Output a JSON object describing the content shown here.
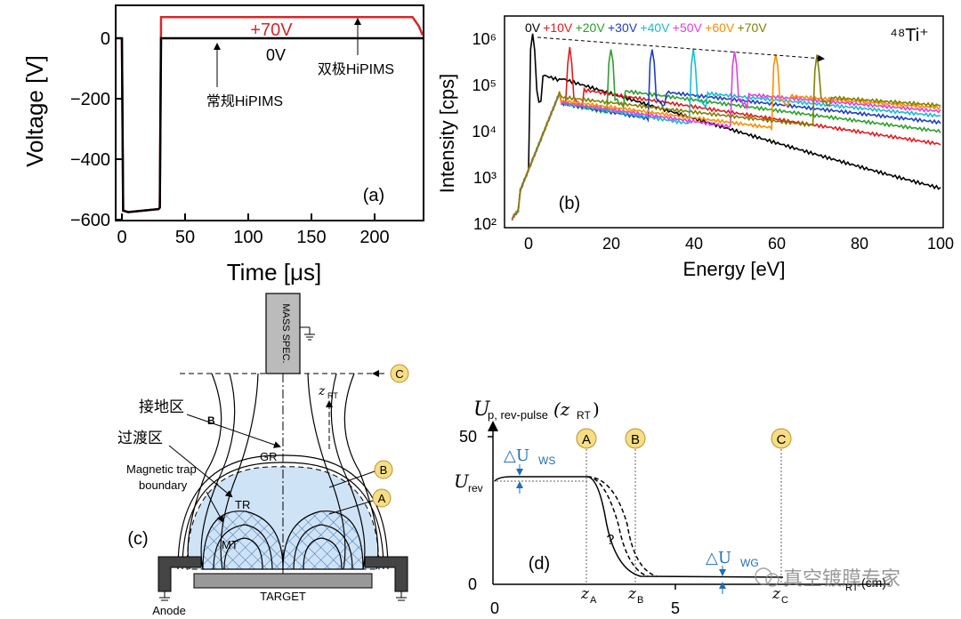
{
  "panel_a": {
    "label": "(a)",
    "ylabel": "Voltage [V]",
    "xlabel": "Time [μs]",
    "xticks": [
      "0",
      "50",
      "100",
      "150",
      "200"
    ],
    "yticks": [
      "0",
      "−200",
      "−400",
      "−600"
    ],
    "annot_70v": "+70V",
    "annot_0v": "0V",
    "annot_conventional": "常规HiPIMS",
    "annot_bipolar": "双极HiPIMS",
    "color_bipolar": "#d62728",
    "color_conventional": "#000000"
  },
  "chart_data": [
    {
      "type": "line",
      "title": "",
      "xlabel": "Time [μs]",
      "ylabel": "Voltage [V]",
      "xlim": [
        -5,
        240
      ],
      "ylim": [
        -620,
        70
      ],
      "series": [
        {
          "name": "双极HiPIMS (+70V)",
          "color": "#d62728",
          "x": [
            0,
            1,
            5,
            29,
            30,
            31,
            230,
            235,
            240
          ],
          "y": [
            0,
            -570,
            -575,
            -565,
            -560,
            70,
            70,
            40,
            10
          ]
        },
        {
          "name": "常规HiPIMS (0V)",
          "color": "#000000",
          "x": [
            -5,
            0,
            1,
            5,
            29,
            30,
            31,
            240
          ],
          "y": [
            0,
            0,
            -570,
            -575,
            -565,
            -560,
            0,
            0
          ]
        }
      ]
    },
    {
      "type": "line",
      "title": "48Ti+",
      "xlabel": "Energy [eV]",
      "ylabel": "Intensity [cps]",
      "xlim": [
        -5,
        100
      ],
      "ylim": [
        100,
        3000000
      ],
      "yscale": "log",
      "series": [
        {
          "name": "0V",
          "color": "#000000",
          "peak": 1,
          "peak_val": 1200000,
          "tail": 120
        },
        {
          "name": "+10V",
          "color": "#e41a1c",
          "peak": 10,
          "peak_val": 600000,
          "tail": 140
        },
        {
          "name": "+20V",
          "color": "#2ca02c",
          "peak": 20,
          "peak_val": 600000,
          "tail": 200
        },
        {
          "name": "+30V",
          "color": "#1f3fbf",
          "peak": 30,
          "peak_val": 600000,
          "tail": 400
        },
        {
          "name": "+40V",
          "color": "#17becf",
          "peak": 40,
          "peak_val": 550000,
          "tail": 800
        },
        {
          "name": "+50V",
          "color": "#e040e0",
          "peak": 50,
          "peak_val": 520000,
          "tail": 2500
        },
        {
          "name": "+60V",
          "color": "#ff8c00",
          "peak": 60,
          "peak_val": 480000,
          "tail": 6000
        },
        {
          "name": "+70V",
          "color": "#808000",
          "peak": 70,
          "peak_val": 420000,
          "tail": 15000
        }
      ]
    },
    {
      "type": "line",
      "title": "U_p, rev-pulse(z_RT)",
      "xlabel": "z_RT (cm)",
      "ylabel": "",
      "xlim": [
        0,
        9
      ],
      "ylim": [
        0,
        55
      ],
      "series": [
        {
          "name": "potential",
          "x": [
            0,
            0.3,
            4.2,
            4.6,
            5.2,
            9
          ],
          "y": [
            37,
            38,
            38,
            20,
            2,
            1.5
          ]
        }
      ]
    }
  ],
  "panel_b": {
    "label": "(b)",
    "ylabel": "Intensity [cps]",
    "xlabel": "Energy [eV]",
    "xticks": [
      "0",
      "20",
      "40",
      "60",
      "80",
      "100"
    ],
    "yticks": [
      "10⁶",
      "10⁵",
      "10⁴",
      "10³",
      "10²"
    ],
    "species": "⁴⁸Ti⁺",
    "legend": [
      "0V",
      "+10V",
      "+20V",
      "+30V",
      "+40V",
      "+50V",
      "+60V",
      "+70V"
    ]
  },
  "panel_c": {
    "label": "(c)",
    "mass_spec": "MASS SPEC.",
    "grounded_region": "接地区",
    "transition_region": "过渡区",
    "boundary_label": "Magnetic trap\nboundary",
    "boundary_line1": "Magnetic trap",
    "boundary_line2": "boundary",
    "gr": "GR",
    "tr": "TR",
    "mt": "MT",
    "b_field": "B",
    "target": "TARGET",
    "anode": "Anode",
    "z_rt": "z",
    "z_rt_sub": "RT",
    "marker_a": "A",
    "marker_b": "B",
    "marker_c": "C"
  },
  "panel_d": {
    "label": "(d)",
    "title_u": "U",
    "title_sub": "p, rev-pulse",
    "title_arg": "(z",
    "title_arg_sub": "RT",
    "title_close": ")",
    "ytick_50": "50",
    "ytick_0": "0",
    "u_rev": "U",
    "u_rev_sub": "rev",
    "delta_ws": "△U",
    "delta_ws_sub": "WS",
    "delta_wg": "△U",
    "delta_wg_sub": "WG",
    "question": "?",
    "x0": "0",
    "x5": "5",
    "za": "z",
    "za_sub": "A",
    "zb": "z",
    "zb_sub": "B",
    "zc": "z",
    "zc_sub": "C",
    "xlabel_sub": "RT",
    "xlabel_unit": "(cm)",
    "marker_a": "A",
    "marker_b": "B",
    "marker_c": "C",
    "watermark": "真空镀膜专家"
  }
}
